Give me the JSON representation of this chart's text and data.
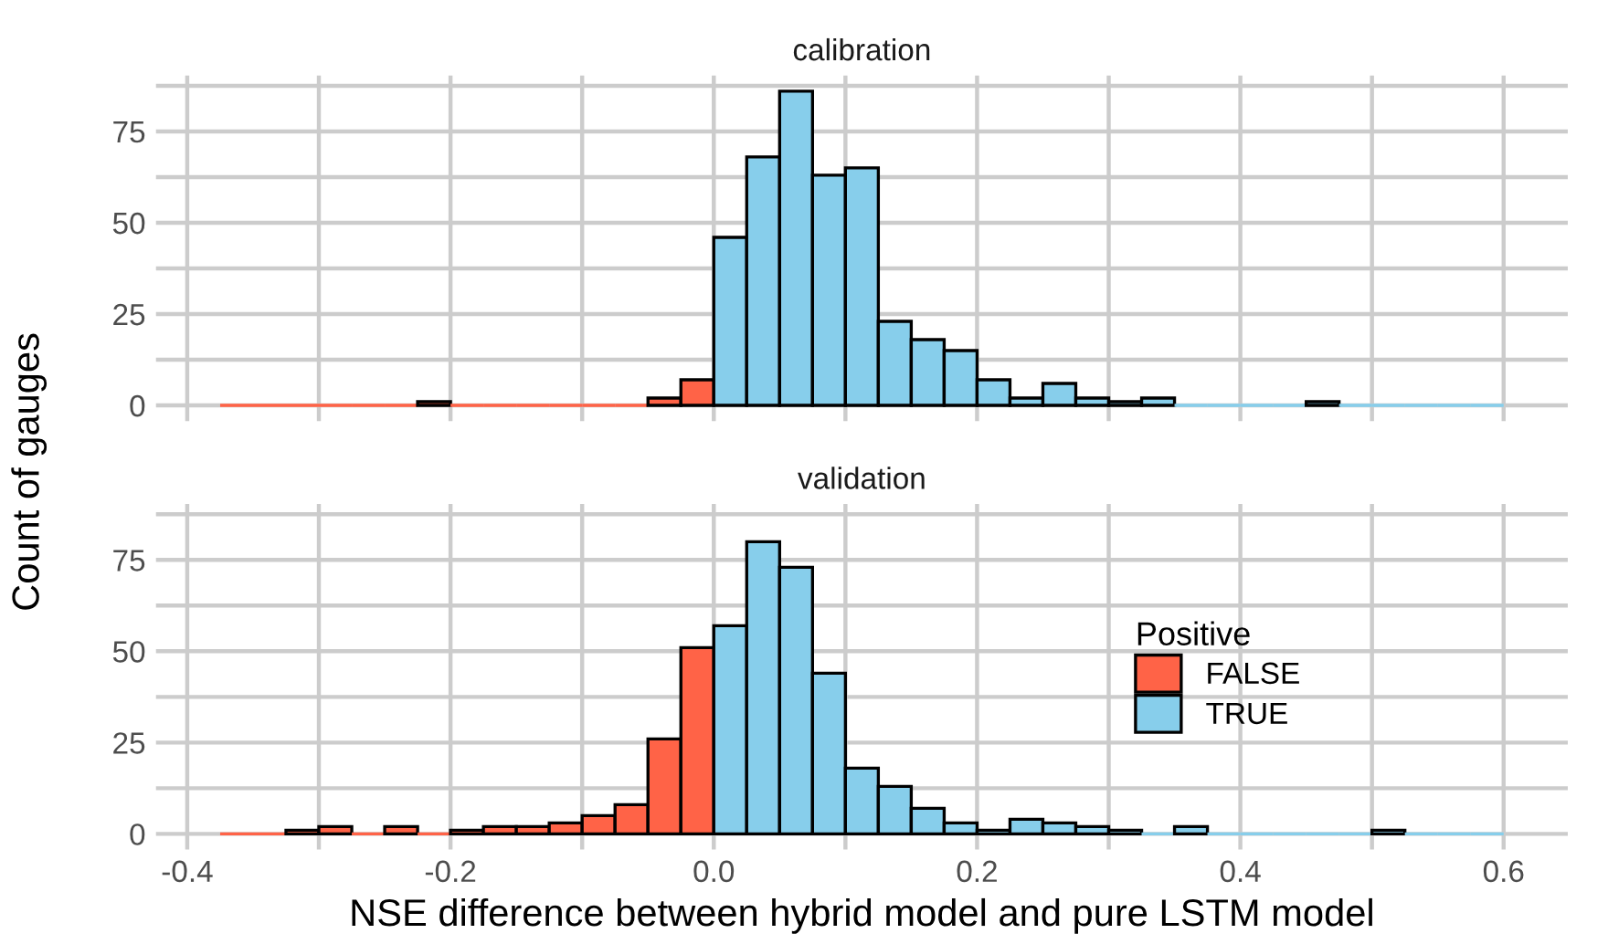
{
  "chart_data": [
    {
      "type": "histogram",
      "title": "calibration",
      "ylabel": "Count of gauges",
      "bins": [
        -0.375,
        -0.35,
        -0.325,
        -0.3,
        -0.275,
        -0.25,
        -0.225,
        -0.2,
        -0.175,
        -0.15,
        -0.125,
        -0.1,
        -0.075,
        -0.05,
        -0.025,
        0,
        0.025,
        0.05,
        0.075,
        0.1,
        0.125,
        0.15,
        0.175,
        0.2,
        0.225,
        0.25,
        0.275,
        0.3,
        0.325,
        0.35,
        0.375,
        0.4,
        0.425,
        0.45,
        0.475,
        0.5,
        0.525,
        0.55,
        0.575,
        0.6
      ],
      "series": [
        {
          "color": "#ff6347",
          "values": [
            0,
            0,
            0,
            0,
            0,
            0,
            1,
            0,
            0,
            0,
            0,
            0,
            0,
            2,
            7,
            null,
            null,
            null,
            null,
            null,
            null,
            null,
            null,
            null,
            null,
            null,
            null,
            null,
            null,
            null,
            null,
            null,
            null,
            null,
            null,
            null,
            null,
            null,
            null
          ]
        },
        {
          "color": "#87ceeb",
          "values": [
            null,
            null,
            null,
            null,
            null,
            null,
            null,
            null,
            null,
            null,
            null,
            null,
            null,
            null,
            null,
            46,
            68,
            86,
            63,
            65,
            23,
            18,
            15,
            7,
            2,
            6,
            2,
            1,
            2,
            0,
            0,
            0,
            0,
            1,
            0,
            0,
            0,
            0,
            0
          ]
        }
      ],
      "xlim": [
        -0.42375,
        0.64875
      ],
      "xticks": [
        {
          "value": -0.4,
          "label": null
        },
        {
          "value": -0.3,
          "label": null
        },
        {
          "value": -0.2,
          "label": null
        },
        {
          "value": -0.1,
          "label": null
        },
        {
          "value": 0.0,
          "label": null
        },
        {
          "value": 0.1,
          "label": null
        },
        {
          "value": 0.2,
          "label": null
        },
        {
          "value": 0.3,
          "label": null
        },
        {
          "value": 0.4,
          "label": null
        },
        {
          "value": 0.5,
          "label": null
        },
        {
          "value": 0.6,
          "label": null
        }
      ],
      "ylim": [
        -4.3,
        90.3
      ],
      "yticks": [
        0,
        {
          "value": 12.5,
          "label": null
        },
        25,
        {
          "value": 37.5,
          "label": null
        },
        50,
        {
          "value": 62.5,
          "label": null
        },
        75,
        {
          "value": 87.5,
          "label": null
        }
      ],
      "grid": true,
      "tick_labels": "y",
      "legend": false
    },
    {
      "type": "histogram",
      "title": "validation",
      "xlabel": "NSE difference between hybrid model and pure LSTM model",
      "legend_title": "Positive",
      "bins": [
        -0.375,
        -0.35,
        -0.325,
        -0.3,
        -0.275,
        -0.25,
        -0.225,
        -0.2,
        -0.175,
        -0.15,
        -0.125,
        -0.1,
        -0.075,
        -0.05,
        -0.025,
        0,
        0.025,
        0.05,
        0.075,
        0.1,
        0.125,
        0.15,
        0.175,
        0.2,
        0.225,
        0.25,
        0.275,
        0.3,
        0.325,
        0.35,
        0.375,
        0.4,
        0.425,
        0.45,
        0.475,
        0.5,
        0.525,
        0.55,
        0.575,
        0.6
      ],
      "series": [
        {
          "name": "FALSE",
          "color": "#ff6347",
          "values": [
            0,
            0,
            1,
            2,
            0,
            2,
            0,
            1,
            2,
            2,
            3,
            5,
            8,
            26,
            51,
            null,
            null,
            null,
            null,
            null,
            null,
            null,
            null,
            null,
            null,
            null,
            null,
            null,
            null,
            null,
            null,
            null,
            null,
            null,
            null,
            null,
            null,
            null,
            null
          ]
        },
        {
          "name": "TRUE",
          "color": "#87ceeb",
          "values": [
            null,
            null,
            null,
            null,
            null,
            null,
            null,
            null,
            null,
            null,
            null,
            null,
            null,
            null,
            null,
            57,
            80,
            73,
            44,
            18,
            13,
            7,
            3,
            1,
            4,
            3,
            2,
            1,
            0,
            2,
            0,
            0,
            0,
            0,
            0,
            1,
            0,
            0,
            0
          ]
        }
      ],
      "xlim": [
        -0.42375,
        0.64875
      ],
      "xticks": [
        -0.4,
        {
          "value": -0.3,
          "label": null
        },
        -0.2,
        {
          "value": -0.1,
          "label": null
        },
        {
          "value": 0.0,
          "label": "0.0"
        },
        {
          "value": 0.1,
          "label": null
        },
        0.2,
        {
          "value": 0.3,
          "label": null
        },
        0.4,
        {
          "value": 0.5,
          "label": null
        },
        0.6
      ],
      "ylim": [
        -4.3,
        90.3
      ],
      "yticks": [
        0,
        {
          "value": 12.5,
          "label": null
        },
        25,
        {
          "value": 37.5,
          "label": null
        },
        50,
        {
          "value": 62.5,
          "label": null
        },
        75,
        {
          "value": 87.5,
          "label": null
        }
      ],
      "grid": true,
      "legend": "right"
    }
  ]
}
